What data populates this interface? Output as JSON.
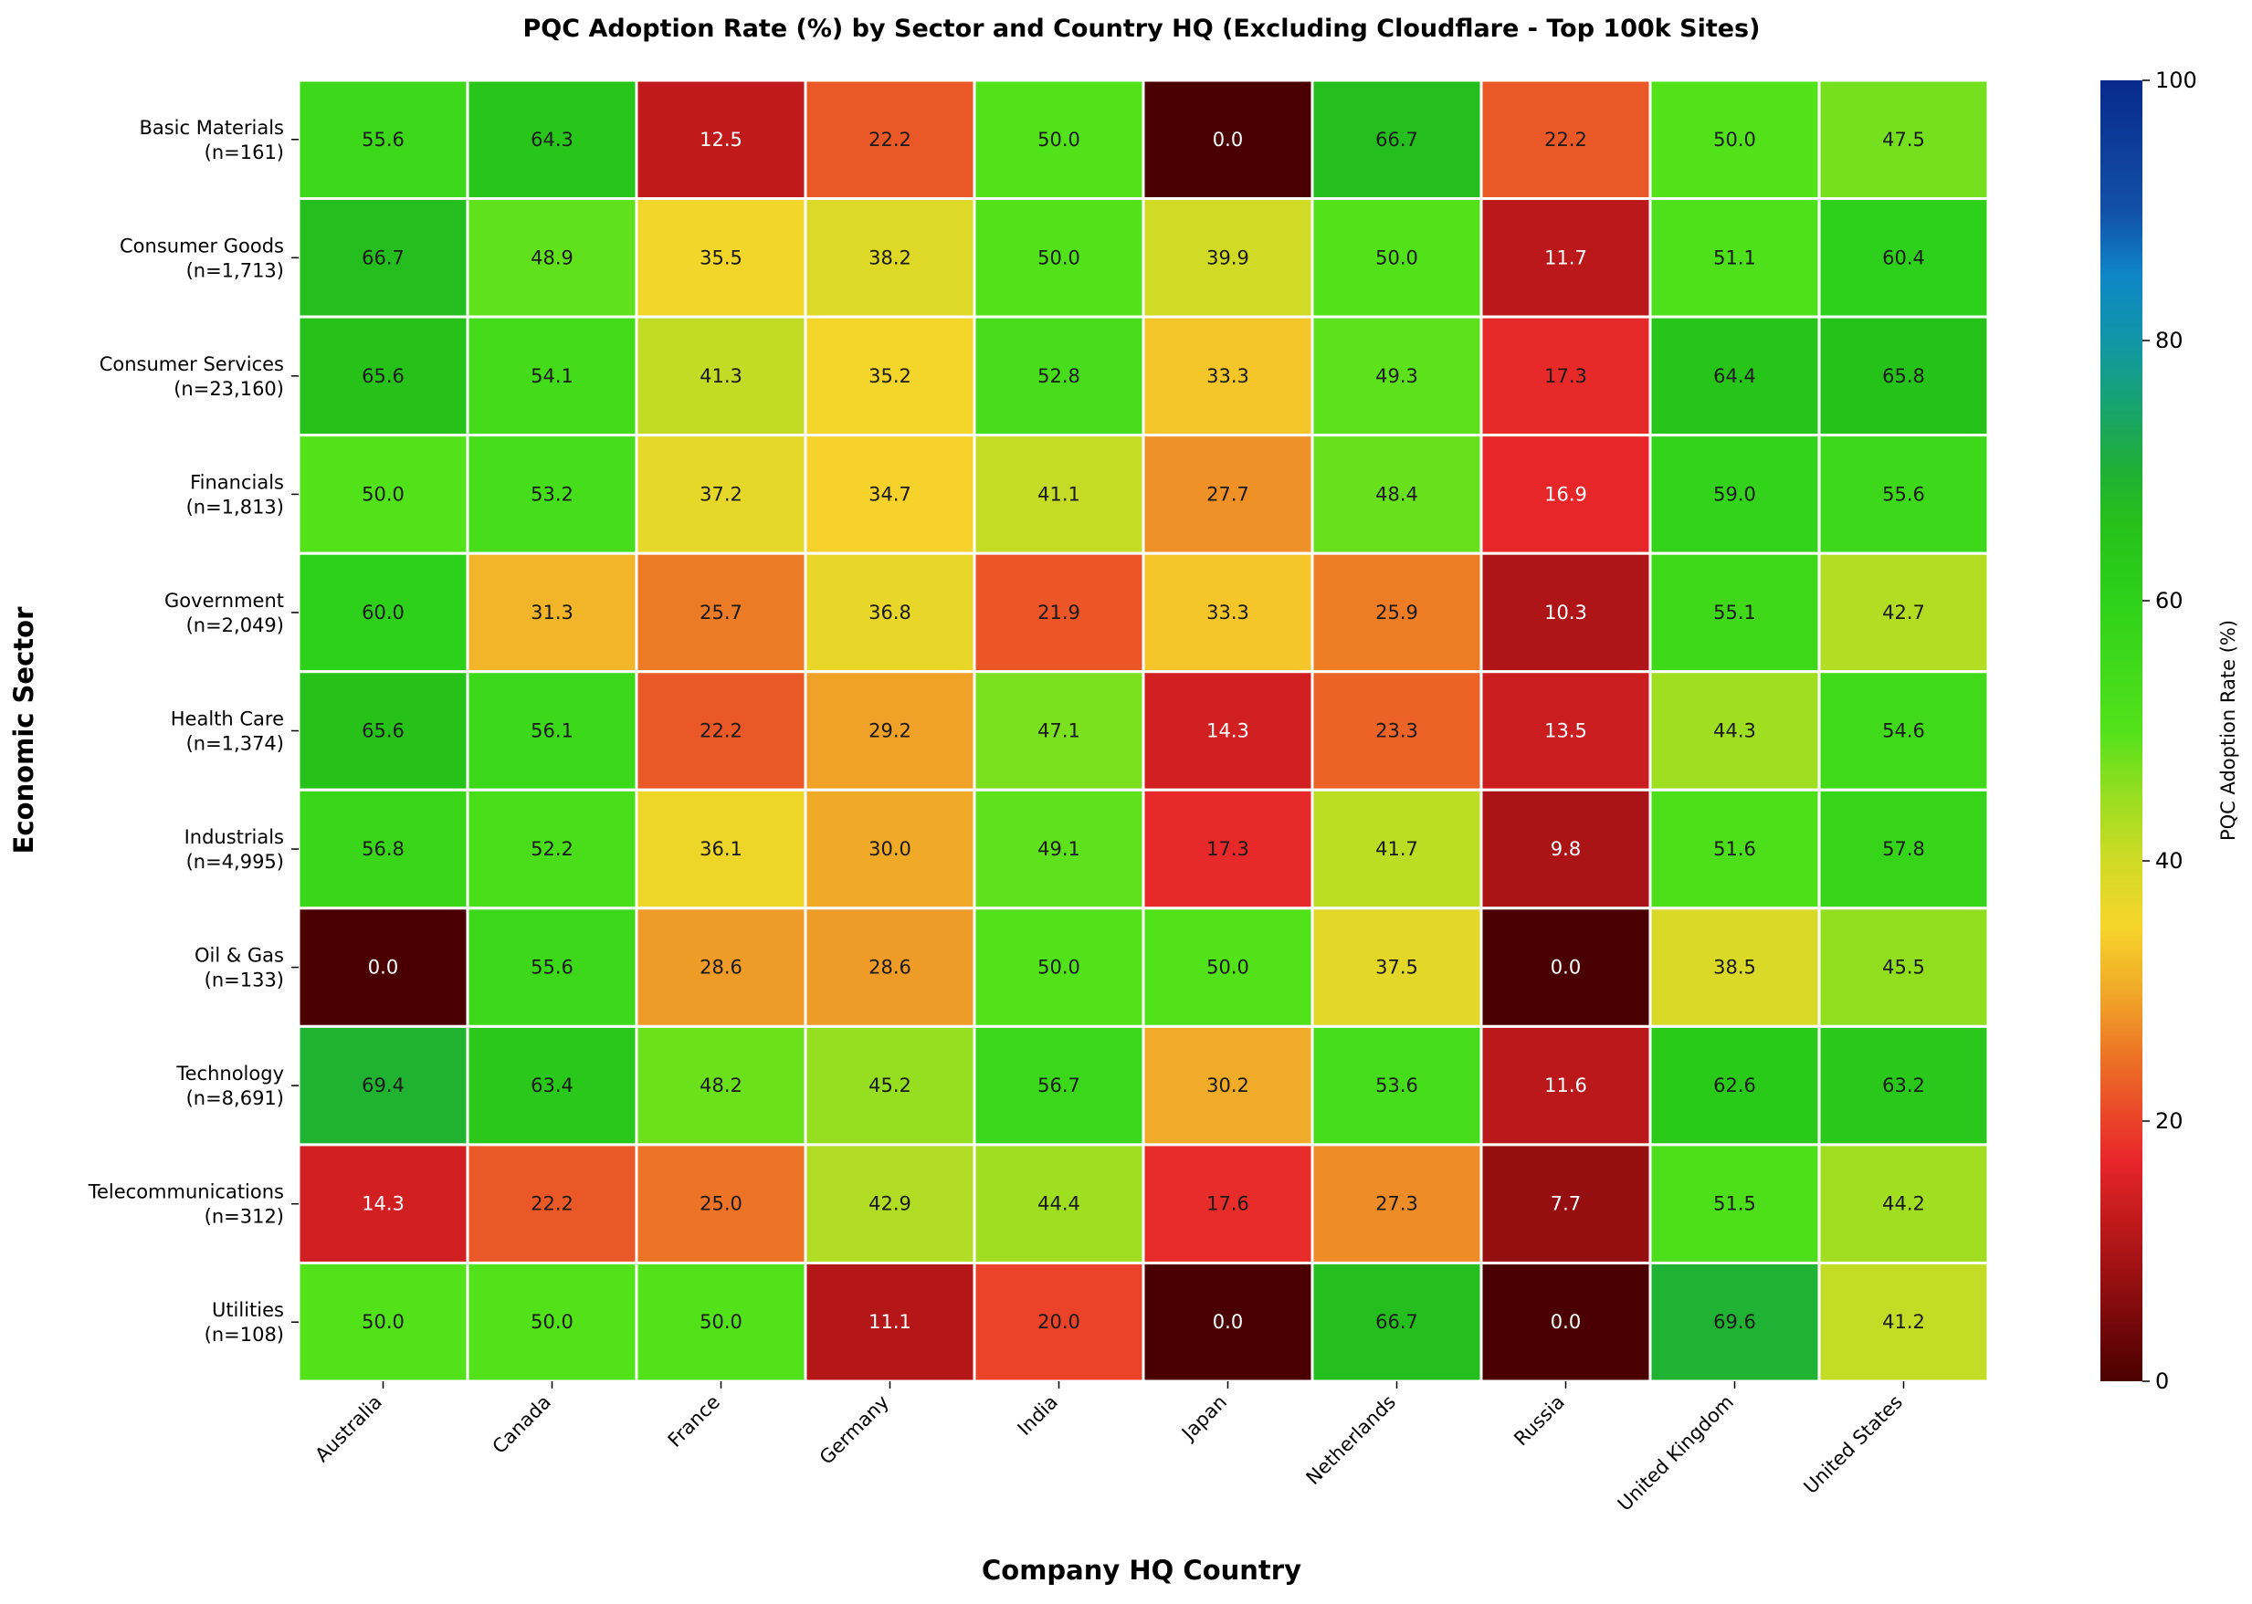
{
  "chart_data": {
    "type": "heatmap",
    "title": "PQC Adoption Rate (%) by Sector and Country HQ (Excluding Cloudflare - Top 100k Sites)",
    "xlabel": "Company HQ Country",
    "ylabel": "Economic Sector",
    "columns": [
      "Australia",
      "Canada",
      "France",
      "Germany",
      "India",
      "Japan",
      "Netherlands",
      "Russia",
      "United Kingdom",
      "United States"
    ],
    "rows": [
      {
        "sector": "Basic Materials",
        "n": "(n=161)"
      },
      {
        "sector": "Consumer Goods",
        "n": "(n=1,713)"
      },
      {
        "sector": "Consumer Services",
        "n": "(n=23,160)"
      },
      {
        "sector": "Financials",
        "n": "(n=1,813)"
      },
      {
        "sector": "Government",
        "n": "(n=2,049)"
      },
      {
        "sector": "Health Care",
        "n": "(n=1,374)"
      },
      {
        "sector": "Industrials",
        "n": "(n=4,995)"
      },
      {
        "sector": "Oil & Gas",
        "n": "(n=133)"
      },
      {
        "sector": "Technology",
        "n": "(n=8,691)"
      },
      {
        "sector": "Telecommunications",
        "n": "(n=312)"
      },
      {
        "sector": "Utilities",
        "n": "(n=108)"
      }
    ],
    "values": [
      [
        55.6,
        64.3,
        12.5,
        22.2,
        50.0,
        0.0,
        66.7,
        22.2,
        50.0,
        47.5
      ],
      [
        66.7,
        48.9,
        35.5,
        38.2,
        50.0,
        39.9,
        50.0,
        11.7,
        51.1,
        60.4
      ],
      [
        65.6,
        54.1,
        41.3,
        35.2,
        52.8,
        33.3,
        49.3,
        17.3,
        64.4,
        65.8
      ],
      [
        50.0,
        53.2,
        37.2,
        34.7,
        41.1,
        27.7,
        48.4,
        16.9,
        59.0,
        55.6
      ],
      [
        60.0,
        31.3,
        25.7,
        36.8,
        21.9,
        33.3,
        25.9,
        10.3,
        55.1,
        42.7
      ],
      [
        65.6,
        56.1,
        22.2,
        29.2,
        47.1,
        14.3,
        23.3,
        13.5,
        44.3,
        54.6
      ],
      [
        56.8,
        52.2,
        36.1,
        30.0,
        49.1,
        17.3,
        41.7,
        9.8,
        51.6,
        57.8
      ],
      [
        0.0,
        55.6,
        28.6,
        28.6,
        50.0,
        50.0,
        37.5,
        0.0,
        38.5,
        45.5
      ],
      [
        69.4,
        63.4,
        48.2,
        45.2,
        56.7,
        30.2,
        53.6,
        11.6,
        62.6,
        63.2
      ],
      [
        14.3,
        22.2,
        25.0,
        42.9,
        44.4,
        17.6,
        27.3,
        7.7,
        51.5,
        44.2
      ],
      [
        50.0,
        50.0,
        50.0,
        11.1,
        20.0,
        0.0,
        66.7,
        0.0,
        69.6,
        41.2
      ]
    ],
    "colorbar": {
      "label": "PQC Adoption Rate (%)",
      "range": [
        0,
        100
      ],
      "ticks": [
        0,
        20,
        40,
        60,
        80,
        100
      ],
      "colormap": [
        {
          "value": 0,
          "color": "#4a0000"
        },
        {
          "value": 10,
          "color": "#ac1416"
        },
        {
          "value": 17,
          "color": "#e8262a"
        },
        {
          "value": 25,
          "color": "#ed7326"
        },
        {
          "value": 30,
          "color": "#f0aa28"
        },
        {
          "value": 35,
          "color": "#f6d52a"
        },
        {
          "value": 40,
          "color": "#d0db26"
        },
        {
          "value": 45,
          "color": "#98de20"
        },
        {
          "value": 50,
          "color": "#52e21a"
        },
        {
          "value": 60,
          "color": "#2ed11a"
        },
        {
          "value": 66,
          "color": "#25c11a"
        },
        {
          "value": 70,
          "color": "#1fb035"
        },
        {
          "value": 80,
          "color": "#1096a8"
        },
        {
          "value": 85,
          "color": "#0f86c6"
        },
        {
          "value": 90,
          "color": "#1250a8"
        },
        {
          "value": 100,
          "color": "#082a8c"
        }
      ]
    },
    "grid": true,
    "cell_labels": true
  }
}
